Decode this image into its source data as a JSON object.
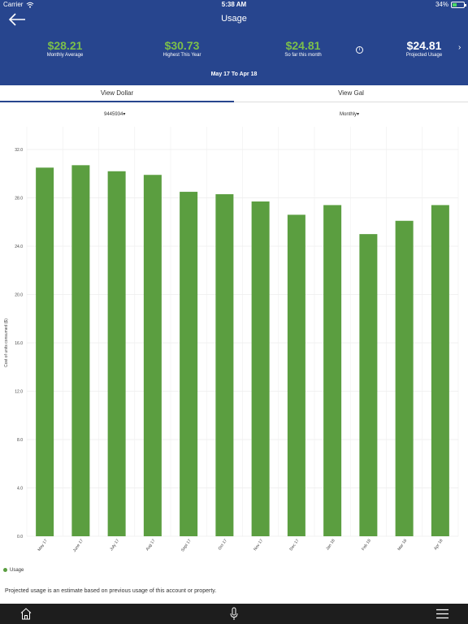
{
  "status_bar": {
    "carrier": "Carrier",
    "time": "5:38 AM",
    "battery": "34%"
  },
  "header": {
    "title": "Usage",
    "stats": [
      {
        "value": "$28.21",
        "label": "Monthly Average"
      },
      {
        "value": "$30.73",
        "label": "Highest This Year"
      },
      {
        "value": "$24.81",
        "label": "So far this month"
      },
      {
        "value": "$24.81",
        "label": "Projected Usage"
      }
    ],
    "info_glyph": "i",
    "next_glyph": "›",
    "date_range": "May 17 To Apr 18"
  },
  "tabs": [
    {
      "label": "View Dollar",
      "active": true
    },
    {
      "label": "View Gal",
      "active": false
    }
  ],
  "selectors": {
    "account": "9445934▾",
    "period": "Monthly▾"
  },
  "chart_data": {
    "type": "bar",
    "categories": [
      "May 17",
      "June 17",
      "July 17",
      "Aug 17",
      "Sept 17",
      "Oct 17",
      "Nov 17",
      "Dec 17",
      "Jan 18",
      "Feb 18",
      "Mar 18",
      "Apr 18"
    ],
    "series": [
      {
        "name": "Usage",
        "values": [
          30.5,
          30.7,
          30.2,
          29.9,
          28.5,
          28.3,
          27.7,
          26.6,
          27.4,
          25.0,
          26.1,
          27.4
        ]
      }
    ],
    "yticks": [
      "0.0",
      "4.0",
      "8.0",
      "12.0",
      "16.0",
      "20.0",
      "24.0",
      "28.0",
      "32.0"
    ],
    "ylabel": "Cost of units consumed ($)",
    "ylim": [
      0,
      32
    ],
    "grid": true,
    "legend": "bottom-left",
    "bar_color": "#5b9e40"
  },
  "legend_label": "Usage",
  "footnote": "Projected usage is an estimate based on previous usage of this account or property.",
  "colors": {
    "header_bg": "#27458e",
    "accent_green": "#7cbf4a",
    "bottom_bar": "#1d1d1d"
  }
}
